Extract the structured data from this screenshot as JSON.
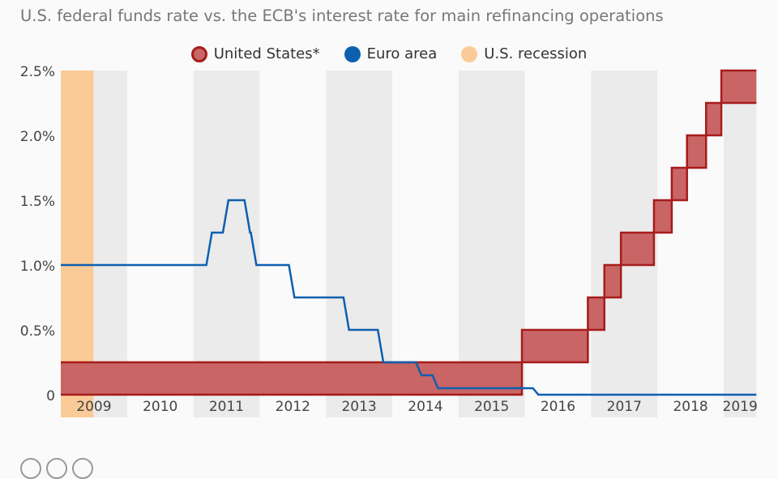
{
  "subtitle": "U.S. federal funds rate vs. the ECB's interest rate for main refinancing operations",
  "chart_data": {
    "type": "line",
    "title": "",
    "subtitle": "U.S. federal funds rate vs. the ECB's interest rate for main refinancing operations",
    "legend": [
      {
        "label": "United States*",
        "color": "#a61c1c",
        "fill": "#c96565"
      },
      {
        "label": "Euro area",
        "color": "#0d5fb0"
      },
      {
        "label": "U.S. recession",
        "color": "#fbcb97"
      }
    ],
    "legend_position": "top",
    "xlim": [
      "2009-01-01",
      "2019-06-30"
    ],
    "ylim": [
      0,
      2.5
    ],
    "y_ticks": [
      {
        "v": 0,
        "label": "0"
      },
      {
        "v": 0.5,
        "label": "0.5%"
      },
      {
        "v": 1,
        "label": "1.0%"
      },
      {
        "v": 1.5,
        "label": "1.5%"
      },
      {
        "v": 2,
        "label": "2.0%"
      },
      {
        "v": 2.5,
        "label": "2.5%"
      }
    ],
    "x_ticks": [
      "2009",
      "2010",
      "2011",
      "2012",
      "2013",
      "2014",
      "2015",
      "2016",
      "2017",
      "2018",
      "2019"
    ],
    "recession": [
      "2009-01-01",
      "2009-06-30"
    ],
    "series": [
      {
        "name": "United States*",
        "type": "range-step",
        "points": [
          [
            "2009-01-01",
            0,
            0.25
          ],
          [
            "2015-12-16",
            0.25,
            0.5
          ],
          [
            "2016-12-14",
            0.5,
            0.75
          ],
          [
            "2017-03-15",
            0.75,
            1.0
          ],
          [
            "2017-06-14",
            1.0,
            1.25
          ],
          [
            "2017-12-13",
            1.25,
            1.5
          ],
          [
            "2018-03-21",
            1.5,
            1.75
          ],
          [
            "2018-06-13",
            1.75,
            2.0
          ],
          [
            "2018-09-26",
            2.0,
            2.25
          ],
          [
            "2018-12-19",
            2.25,
            2.5
          ]
        ]
      },
      {
        "name": "Euro area",
        "type": "step",
        "points": [
          [
            "2009-01-01",
            1.0
          ],
          [
            "2011-04-13",
            1.25
          ],
          [
            "2011-07-13",
            1.5
          ],
          [
            "2011-11-09",
            1.25
          ],
          [
            "2011-12-14",
            1.0
          ],
          [
            "2012-07-11",
            0.75
          ],
          [
            "2013-05-08",
            0.5
          ],
          [
            "2013-11-13",
            0.25
          ],
          [
            "2014-06-11",
            0.15
          ],
          [
            "2014-09-10",
            0.05
          ],
          [
            "2016-03-16",
            0.0
          ]
        ]
      }
    ],
    "grid": false,
    "year_bands": true
  }
}
